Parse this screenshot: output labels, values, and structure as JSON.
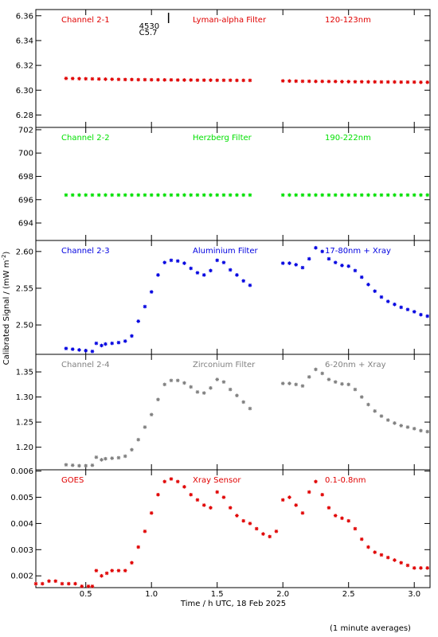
{
  "chart_data": {
    "type": "scatter",
    "xlabel": "Time / h UTC, 18 Feb 2025",
    "ylabel": "Calibrated Signal / (mW m",
    "ylabel_sup": "-2",
    "ylabel_tail": ")",
    "xlim": [
      0.12,
      3.12
    ],
    "x_ticks": [
      0.5,
      1.0,
      1.5,
      2.0,
      2.5,
      3.0
    ],
    "x_tick_labels": [
      "0.5",
      "1.0",
      "1.5",
      "2.0",
      "2.5",
      "3.0"
    ],
    "footnote": "(1 minute averages)",
    "event_marker": {
      "x": 1.13,
      "lines": [
        "4530",
        "C5.7"
      ]
    },
    "panels": [
      {
        "channel": "Channel 2-1",
        "filter": "Lyman-alpha Filter",
        "band": "120-123nm",
        "color": "#e00000",
        "ylim": [
          6.27,
          6.365
        ],
        "y_ticks": [
          6.28,
          6.3,
          6.32,
          6.34,
          6.36
        ],
        "y_tick_labels": [
          "6.28",
          "6.30",
          "6.32",
          "6.34",
          "6.36"
        ],
        "points": [
          [
            0.35,
            6.3095
          ],
          [
            0.4,
            6.3094
          ],
          [
            0.45,
            6.3093
          ],
          [
            0.5,
            6.3092
          ],
          [
            0.55,
            6.3091
          ],
          [
            0.6,
            6.309
          ],
          [
            0.65,
            6.3089
          ],
          [
            0.7,
            6.3088
          ],
          [
            0.75,
            6.3087
          ],
          [
            0.8,
            6.3086
          ],
          [
            0.85,
            6.3086
          ],
          [
            0.9,
            6.3085
          ],
          [
            0.95,
            6.3085
          ],
          [
            1.0,
            6.3084
          ],
          [
            1.05,
            6.3084
          ],
          [
            1.1,
            6.3083
          ],
          [
            1.15,
            6.3083
          ],
          [
            1.2,
            6.3082
          ],
          [
            1.25,
            6.3082
          ],
          [
            1.3,
            6.3082
          ],
          [
            1.35,
            6.3081
          ],
          [
            1.4,
            6.3081
          ],
          [
            1.45,
            6.3081
          ],
          [
            1.5,
            6.308
          ],
          [
            1.55,
            6.308
          ],
          [
            1.6,
            6.308
          ],
          [
            1.65,
            6.3079
          ],
          [
            1.7,
            6.3079
          ],
          [
            1.75,
            6.3079
          ],
          [
            2.0,
            6.3075
          ],
          [
            2.05,
            6.3074
          ],
          [
            2.1,
            6.3073
          ],
          [
            2.15,
            6.3072
          ],
          [
            2.2,
            6.3072
          ],
          [
            2.25,
            6.3071
          ],
          [
            2.3,
            6.3071
          ],
          [
            2.35,
            6.307
          ],
          [
            2.4,
            6.307
          ],
          [
            2.45,
            6.3069
          ],
          [
            2.5,
            6.3069
          ],
          [
            2.55,
            6.3068
          ],
          [
            2.6,
            6.3068
          ],
          [
            2.65,
            6.3067
          ],
          [
            2.7,
            6.3067
          ],
          [
            2.75,
            6.3066
          ],
          [
            2.8,
            6.3066
          ],
          [
            2.85,
            6.3066
          ],
          [
            2.9,
            6.3065
          ],
          [
            2.95,
            6.3065
          ],
          [
            3.0,
            6.3065
          ],
          [
            3.05,
            6.3064
          ],
          [
            3.1,
            6.3064
          ]
        ]
      },
      {
        "channel": "Channel 2-2",
        "filter": "Herzberg Filter",
        "band": "190-222nm",
        "color": "#00e000",
        "ylim": [
          692.5,
          702.2
        ],
        "y_ticks": [
          694,
          696,
          698,
          700,
          702
        ],
        "y_tick_labels": [
          "694",
          "696",
          "698",
          "700",
          "702"
        ],
        "points": [
          [
            0.35,
            696.4
          ],
          [
            0.4,
            696.4
          ],
          [
            0.45,
            696.4
          ],
          [
            0.5,
            696.4
          ],
          [
            0.55,
            696.4
          ],
          [
            0.6,
            696.4
          ],
          [
            0.65,
            696.4
          ],
          [
            0.7,
            696.4
          ],
          [
            0.75,
            696.4
          ],
          [
            0.8,
            696.4
          ],
          [
            0.85,
            696.4
          ],
          [
            0.9,
            696.4
          ],
          [
            0.95,
            696.4
          ],
          [
            1.0,
            696.4
          ],
          [
            1.05,
            696.4
          ],
          [
            1.1,
            696.4
          ],
          [
            1.15,
            696.4
          ],
          [
            1.2,
            696.4
          ],
          [
            1.25,
            696.4
          ],
          [
            1.3,
            696.4
          ],
          [
            1.35,
            696.4
          ],
          [
            1.4,
            696.4
          ],
          [
            1.45,
            696.4
          ],
          [
            1.5,
            696.4
          ],
          [
            1.55,
            696.4
          ],
          [
            1.6,
            696.4
          ],
          [
            1.65,
            696.4
          ],
          [
            1.7,
            696.4
          ],
          [
            1.75,
            696.4
          ],
          [
            2.0,
            696.4
          ],
          [
            2.05,
            696.4
          ],
          [
            2.1,
            696.4
          ],
          [
            2.15,
            696.4
          ],
          [
            2.2,
            696.4
          ],
          [
            2.25,
            696.4
          ],
          [
            2.3,
            696.4
          ],
          [
            2.35,
            696.4
          ],
          [
            2.4,
            696.4
          ],
          [
            2.45,
            696.4
          ],
          [
            2.5,
            696.4
          ],
          [
            2.55,
            696.4
          ],
          [
            2.6,
            696.4
          ],
          [
            2.65,
            696.4
          ],
          [
            2.7,
            696.4
          ],
          [
            2.75,
            696.4
          ],
          [
            2.8,
            696.4
          ],
          [
            2.85,
            696.4
          ],
          [
            2.9,
            696.4
          ],
          [
            2.95,
            696.4
          ],
          [
            3.0,
            696.4
          ],
          [
            3.05,
            696.4
          ],
          [
            3.1,
            696.4
          ]
        ]
      },
      {
        "channel": "Channel 2-3",
        "filter": "Aluminium Filter",
        "band": "17-80nm + Xray",
        "color": "#0000e0",
        "ylim": [
          2.46,
          2.615
        ],
        "y_ticks": [
          2.5,
          2.55,
          2.6
        ],
        "y_tick_labels": [
          "2.50",
          "2.55",
          "2.60"
        ],
        "points": [
          [
            0.35,
            2.468
          ],
          [
            0.4,
            2.467
          ],
          [
            0.45,
            2.466
          ],
          [
            0.5,
            2.465
          ],
          [
            0.55,
            2.464
          ],
          [
            0.58,
            2.475
          ],
          [
            0.62,
            2.472
          ],
          [
            0.65,
            2.474
          ],
          [
            0.7,
            2.475
          ],
          [
            0.75,
            2.476
          ],
          [
            0.8,
            2.478
          ],
          [
            0.85,
            2.485
          ],
          [
            0.9,
            2.505
          ],
          [
            0.95,
            2.525
          ],
          [
            1.0,
            2.545
          ],
          [
            1.05,
            2.568
          ],
          [
            1.1,
            2.585
          ],
          [
            1.15,
            2.588
          ],
          [
            1.2,
            2.587
          ],
          [
            1.25,
            2.584
          ],
          [
            1.3,
            2.577
          ],
          [
            1.35,
            2.571
          ],
          [
            1.4,
            2.568
          ],
          [
            1.45,
            2.574
          ],
          [
            1.5,
            2.588
          ],
          [
            1.55,
            2.585
          ],
          [
            1.6,
            2.575
          ],
          [
            1.65,
            2.568
          ],
          [
            1.7,
            2.56
          ],
          [
            1.75,
            2.554
          ],
          [
            2.0,
            2.584
          ],
          [
            2.05,
            2.584
          ],
          [
            2.1,
            2.582
          ],
          [
            2.15,
            2.578
          ],
          [
            2.2,
            2.59
          ],
          [
            2.25,
            2.605
          ],
          [
            2.3,
            2.6
          ],
          [
            2.35,
            2.59
          ],
          [
            2.4,
            2.585
          ],
          [
            2.45,
            2.581
          ],
          [
            2.5,
            2.58
          ],
          [
            2.55,
            2.574
          ],
          [
            2.6,
            2.565
          ],
          [
            2.65,
            2.555
          ],
          [
            2.7,
            2.546
          ],
          [
            2.75,
            2.538
          ],
          [
            2.8,
            2.532
          ],
          [
            2.85,
            2.528
          ],
          [
            2.9,
            2.524
          ],
          [
            2.95,
            2.521
          ],
          [
            3.0,
            2.518
          ],
          [
            3.05,
            2.514
          ],
          [
            3.1,
            2.512
          ]
        ]
      },
      {
        "channel": "Channel 2-4",
        "filter": "Zirconium Filter",
        "band": "6-20nm + Xray",
        "color": "#808080",
        "ylim": [
          1.155,
          1.385
        ],
        "y_ticks": [
          1.2,
          1.25,
          1.3,
          1.35
        ],
        "y_tick_labels": [
          "1.20",
          "1.25",
          "1.30",
          "1.35"
        ],
        "points": [
          [
            0.35,
            1.165
          ],
          [
            0.4,
            1.164
          ],
          [
            0.45,
            1.163
          ],
          [
            0.5,
            1.163
          ],
          [
            0.55,
            1.164
          ],
          [
            0.58,
            1.18
          ],
          [
            0.62,
            1.175
          ],
          [
            0.65,
            1.177
          ],
          [
            0.7,
            1.178
          ],
          [
            0.75,
            1.179
          ],
          [
            0.8,
            1.182
          ],
          [
            0.85,
            1.195
          ],
          [
            0.9,
            1.215
          ],
          [
            0.95,
            1.24
          ],
          [
            1.0,
            1.265
          ],
          [
            1.05,
            1.295
          ],
          [
            1.1,
            1.325
          ],
          [
            1.15,
            1.333
          ],
          [
            1.2,
            1.333
          ],
          [
            1.25,
            1.328
          ],
          [
            1.3,
            1.32
          ],
          [
            1.35,
            1.31
          ],
          [
            1.4,
            1.308
          ],
          [
            1.45,
            1.318
          ],
          [
            1.5,
            1.335
          ],
          [
            1.55,
            1.33
          ],
          [
            1.6,
            1.315
          ],
          [
            1.65,
            1.303
          ],
          [
            1.7,
            1.29
          ],
          [
            1.75,
            1.277
          ],
          [
            2.0,
            1.327
          ],
          [
            2.05,
            1.327
          ],
          [
            2.1,
            1.325
          ],
          [
            2.15,
            1.322
          ],
          [
            2.2,
            1.34
          ],
          [
            2.25,
            1.355
          ],
          [
            2.3,
            1.347
          ],
          [
            2.35,
            1.335
          ],
          [
            2.4,
            1.33
          ],
          [
            2.45,
            1.326
          ],
          [
            2.5,
            1.325
          ],
          [
            2.55,
            1.315
          ],
          [
            2.6,
            1.3
          ],
          [
            2.65,
            1.285
          ],
          [
            2.7,
            1.272
          ],
          [
            2.75,
            1.262
          ],
          [
            2.8,
            1.254
          ],
          [
            2.85,
            1.248
          ],
          [
            2.9,
            1.243
          ],
          [
            2.95,
            1.24
          ],
          [
            3.0,
            1.237
          ],
          [
            3.05,
            1.233
          ],
          [
            3.1,
            1.231
          ]
        ]
      },
      {
        "channel": "GOES",
        "filter": "Xray Sensor",
        "band": "0.1-0.8nm",
        "color": "#e00000",
        "ylim": [
          0.00155,
          0.00605
        ],
        "y_ticks": [
          0.002,
          0.003,
          0.004,
          0.005,
          0.006
        ],
        "y_tick_labels": [
          "0.002",
          "0.003",
          "0.004",
          "0.005",
          "0.006"
        ],
        "points": [
          [
            0.12,
            0.0017
          ],
          [
            0.17,
            0.0017
          ],
          [
            0.22,
            0.0018
          ],
          [
            0.27,
            0.0018
          ],
          [
            0.32,
            0.0017
          ],
          [
            0.37,
            0.0017
          ],
          [
            0.42,
            0.0017
          ],
          [
            0.47,
            0.0016
          ],
          [
            0.52,
            0.0016
          ],
          [
            0.55,
            0.0016
          ],
          [
            0.58,
            0.0022
          ],
          [
            0.62,
            0.002
          ],
          [
            0.66,
            0.0021
          ],
          [
            0.7,
            0.0022
          ],
          [
            0.75,
            0.0022
          ],
          [
            0.8,
            0.0022
          ],
          [
            0.85,
            0.0025
          ],
          [
            0.9,
            0.0031
          ],
          [
            0.95,
            0.0037
          ],
          [
            1.0,
            0.0044
          ],
          [
            1.05,
            0.0051
          ],
          [
            1.1,
            0.0056
          ],
          [
            1.15,
            0.0057
          ],
          [
            1.2,
            0.0056
          ],
          [
            1.25,
            0.0054
          ],
          [
            1.3,
            0.0051
          ],
          [
            1.35,
            0.0049
          ],
          [
            1.4,
            0.0047
          ],
          [
            1.45,
            0.0046
          ],
          [
            1.5,
            0.0052
          ],
          [
            1.55,
            0.005
          ],
          [
            1.6,
            0.0046
          ],
          [
            1.65,
            0.0043
          ],
          [
            1.7,
            0.0041
          ],
          [
            1.75,
            0.004
          ],
          [
            1.8,
            0.0038
          ],
          [
            1.85,
            0.0036
          ],
          [
            1.9,
            0.0035
          ],
          [
            1.95,
            0.0037
          ],
          [
            2.0,
            0.0049
          ],
          [
            2.05,
            0.005
          ],
          [
            2.1,
            0.0047
          ],
          [
            2.15,
            0.0044
          ],
          [
            2.2,
            0.0052
          ],
          [
            2.25,
            0.0056
          ],
          [
            2.3,
            0.0051
          ],
          [
            2.35,
            0.0046
          ],
          [
            2.4,
            0.0043
          ],
          [
            2.45,
            0.0042
          ],
          [
            2.5,
            0.0041
          ],
          [
            2.55,
            0.0038
          ],
          [
            2.6,
            0.0034
          ],
          [
            2.65,
            0.0031
          ],
          [
            2.7,
            0.0029
          ],
          [
            2.75,
            0.0028
          ],
          [
            2.8,
            0.0027
          ],
          [
            2.85,
            0.0026
          ],
          [
            2.9,
            0.0025
          ],
          [
            2.95,
            0.0024
          ],
          [
            3.0,
            0.0023
          ],
          [
            3.05,
            0.0023
          ],
          [
            3.1,
            0.0023
          ]
        ]
      }
    ]
  }
}
